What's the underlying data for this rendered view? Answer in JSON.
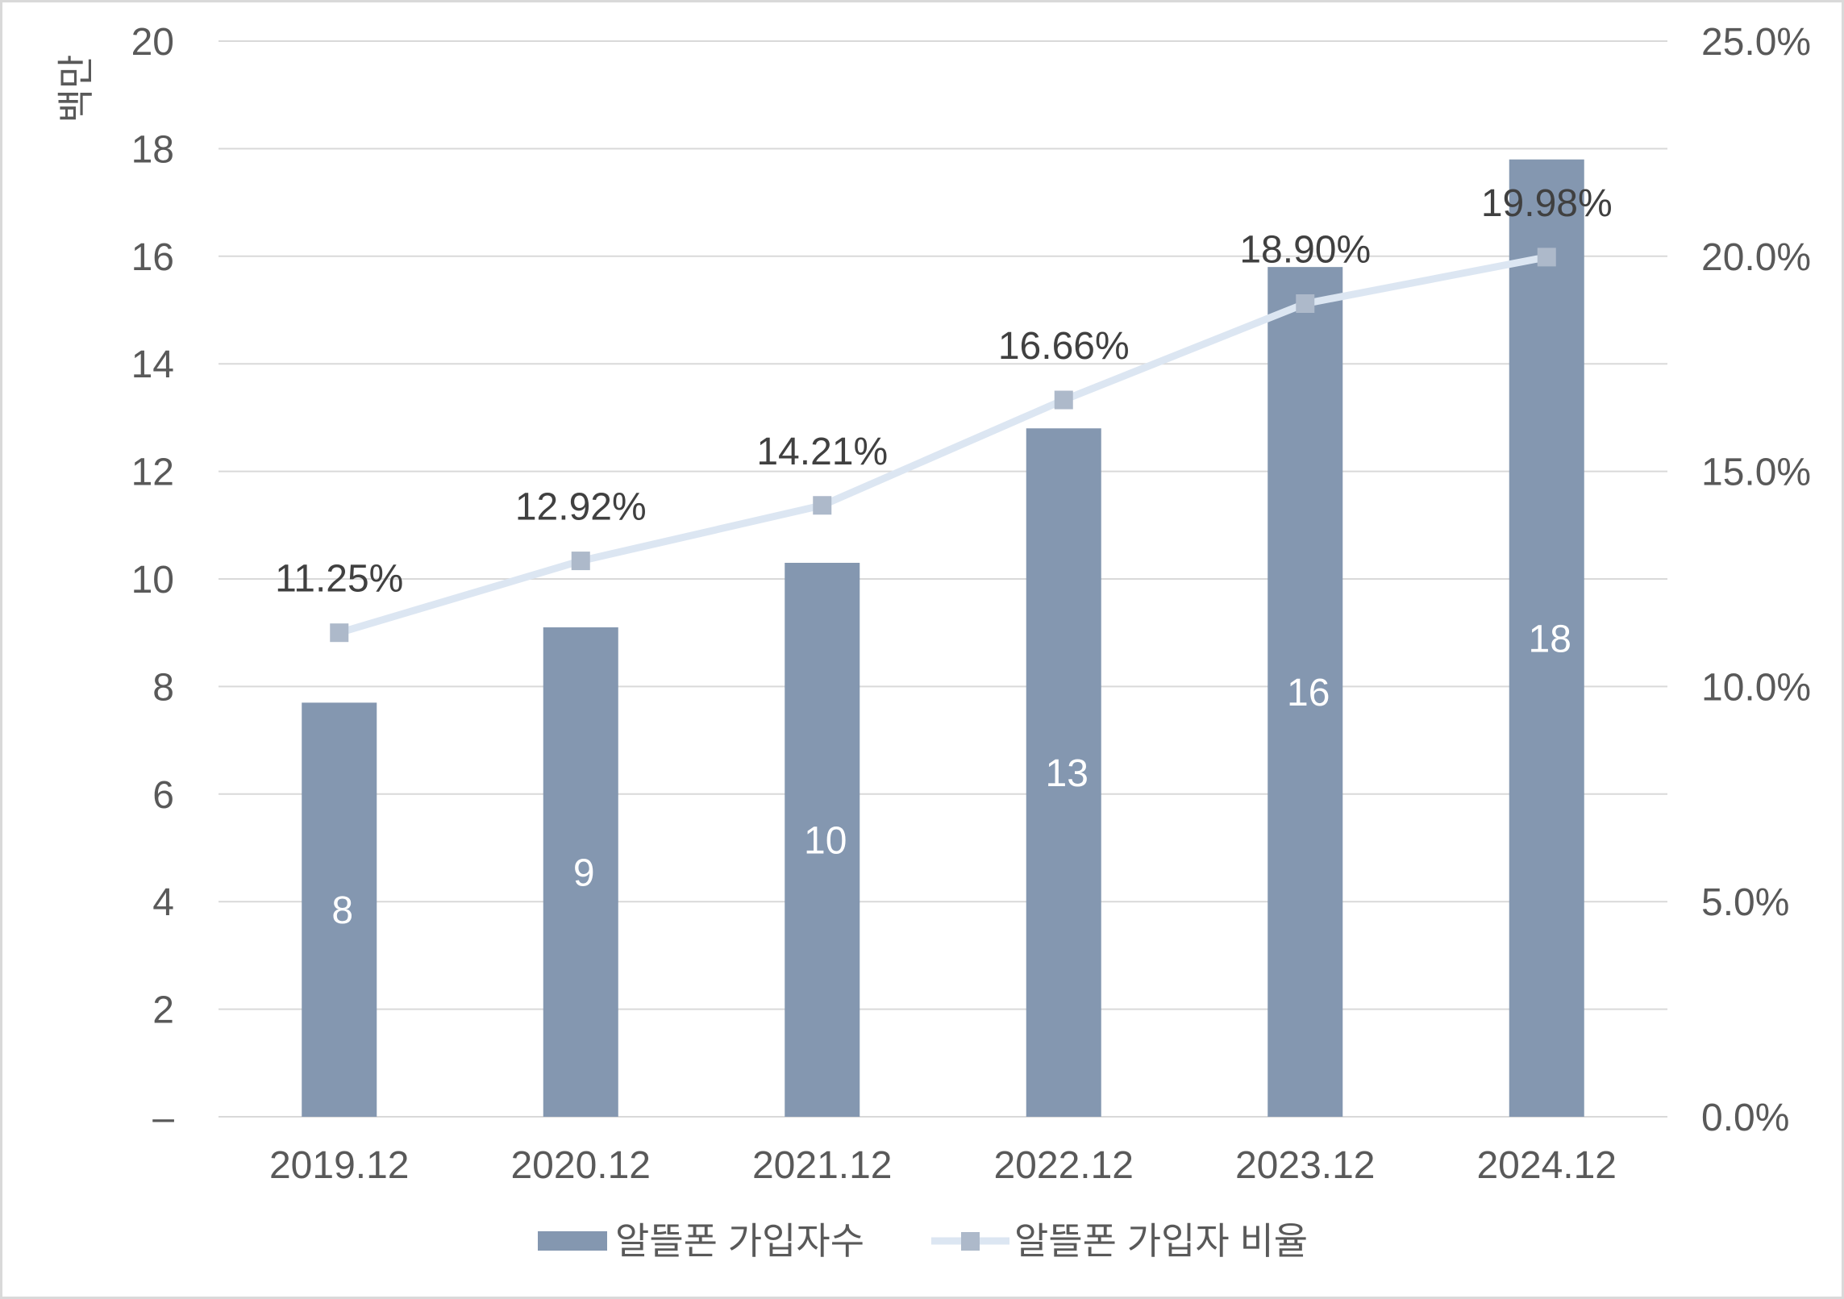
{
  "chart_data": {
    "type": "bar",
    "categories": [
      "2019.12",
      "2020.12",
      "2021.12",
      "2022.12",
      "2023.12",
      "2024.12"
    ],
    "series": [
      {
        "name": "알뜰폰 가입자수",
        "type": "bar",
        "axis": "left",
        "values": [
          7.7,
          9.1,
          10.3,
          12.8,
          15.8,
          17.8
        ],
        "data_labels": [
          "8",
          "9",
          "10",
          "13",
          "16",
          "18"
        ],
        "color": "#8497b0"
      },
      {
        "name": "알뜰폰 가입자 비율",
        "type": "line",
        "axis": "right",
        "values": [
          11.25,
          12.92,
          14.21,
          16.66,
          18.9,
          19.98
        ],
        "data_labels": [
          "11.25%",
          "12.92%",
          "14.21%",
          "16.66%",
          "18.90%",
          "19.98%"
        ],
        "color": "#dce6f2",
        "marker": "square",
        "marker_color": "#adb9ca"
      }
    ],
    "ylabel": "백만",
    "ylim": [
      0,
      20
    ],
    "yticks": [
      "–",
      "2",
      "4",
      "6",
      "8",
      "10",
      "12",
      "14",
      "16",
      "18",
      "20"
    ],
    "y2lim": [
      0,
      25
    ],
    "y2ticks": [
      "0.0%",
      "5.0%",
      "10.0%",
      "15.0%",
      "20.0%",
      "25.0%"
    ],
    "grid": true,
    "legend": "bottom",
    "colors": {
      "grid": "#d9d9d9",
      "axis_text": "#595959",
      "label_text": "#404040",
      "bar_label_text": "#ffffff",
      "border": "#d9d9d9"
    }
  }
}
